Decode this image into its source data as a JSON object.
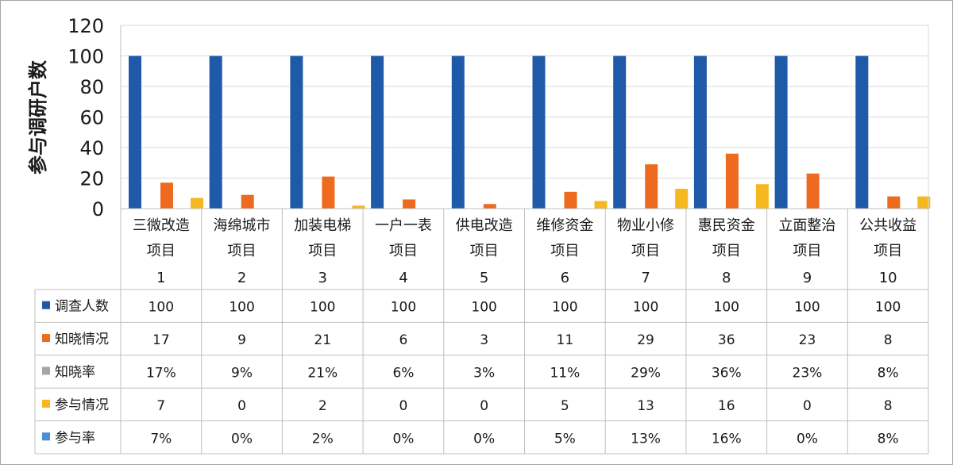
{
  "chart_data": {
    "type": "bar",
    "ylabel": "参与调研户数",
    "ylim": [
      0,
      120
    ],
    "yticks": [
      0,
      20,
      40,
      60,
      80,
      100,
      120
    ],
    "grid": true,
    "categories": [
      [
        "三微改造",
        "项目",
        "1"
      ],
      [
        "海绵城市",
        "项目",
        "2"
      ],
      [
        "加装电梯",
        "项目",
        "3"
      ],
      [
        "一户一表",
        "项目",
        "4"
      ],
      [
        "供电改造",
        "项目",
        "5"
      ],
      [
        "维修资金",
        "项目",
        "6"
      ],
      [
        "物业小修",
        "项目",
        "7"
      ],
      [
        "惠民资金",
        "项目",
        "8"
      ],
      [
        "立面整治",
        "项目",
        "9"
      ],
      [
        "公共收益",
        "项目",
        "10"
      ]
    ],
    "series": [
      {
        "name": "调查人数",
        "color": "#1f5aa8",
        "plotted": true,
        "values": [
          100,
          100,
          100,
          100,
          100,
          100,
          100,
          100,
          100,
          100
        ],
        "labels": [
          "100",
          "100",
          "100",
          "100",
          "100",
          "100",
          "100",
          "100",
          "100",
          "100"
        ]
      },
      {
        "name": "知晓情况",
        "color": "#ed6a1f",
        "plotted": true,
        "values": [
          17,
          9,
          21,
          6,
          3,
          11,
          29,
          36,
          23,
          8
        ],
        "labels": [
          "17",
          "9",
          "21",
          "6",
          "3",
          "11",
          "29",
          "36",
          "23",
          "8"
        ]
      },
      {
        "name": "知晓率",
        "color": "#a5a5a5",
        "plotted": false,
        "values": [
          0.17,
          0.09,
          0.21,
          0.06,
          0.03,
          0.11,
          0.29,
          0.36,
          0.23,
          0.08
        ],
        "labels": [
          "17%",
          "9%",
          "21%",
          "6%",
          "3%",
          "11%",
          "29%",
          "36%",
          "23%",
          "8%"
        ]
      },
      {
        "name": "参与情况",
        "color": "#f6b820",
        "plotted": true,
        "values": [
          7,
          0,
          2,
          0,
          0,
          5,
          13,
          16,
          0,
          8
        ],
        "labels": [
          "7",
          "0",
          "2",
          "0",
          "0",
          "5",
          "13",
          "16",
          "0",
          "8"
        ]
      },
      {
        "name": "参与率",
        "color": "#4a8fd8",
        "plotted": false,
        "values": [
          0.07,
          0,
          0.02,
          0,
          0,
          0.05,
          0.13,
          0.16,
          0,
          0.08
        ],
        "labels": [
          "7%",
          "0%",
          "2%",
          "0%",
          "0%",
          "5%",
          "13%",
          "16%",
          "0%",
          "8%"
        ]
      }
    ]
  }
}
